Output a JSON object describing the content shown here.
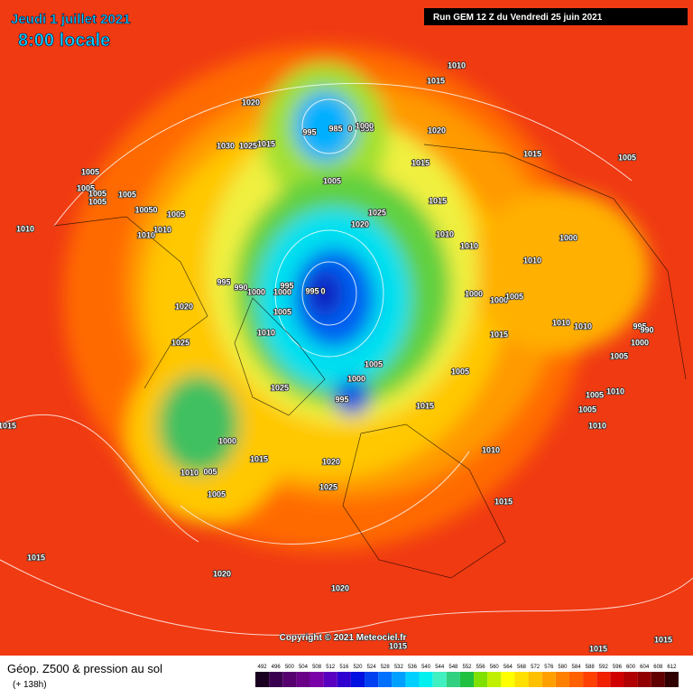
{
  "header": {
    "date": "Jeudi 1 juillet 2021",
    "time": "8:00 locale",
    "run": "Run GEM 12 Z du Vendredi 25 juin 2021"
  },
  "copyright": "Copyright © 2021 Meteociel.fr",
  "isobar_labels": [
    "1010",
    "1015",
    "1020",
    "995",
    "985",
    "0",
    "990",
    "1000",
    "1020",
    "1030",
    "1025",
    "1015",
    "1015",
    "1015",
    "1005",
    "1005",
    "1005",
    "1005",
    "1005",
    "1005",
    "10050",
    "1005",
    "1005",
    "1025",
    "1020",
    "1015",
    "1010",
    "1010",
    "1010",
    "1010",
    "1000",
    "1010",
    "1010",
    "995",
    "990",
    "995",
    "1000",
    "1000",
    "995",
    "0",
    "1000",
    "1000",
    "1005",
    "1020",
    "1005",
    "1010",
    "1010",
    "995",
    "990",
    "1000",
    "1010",
    "1015",
    "1025",
    "1005",
    "1005",
    "1005",
    "1025",
    "1000",
    "995",
    "1010",
    "1005",
    "1015",
    "1005",
    "1010",
    "1015",
    "1000",
    "1010",
    "1015",
    "1010",
    "005",
    "1020",
    "1025",
    "1005",
    "1015",
    "1015",
    "1020",
    "1020",
    "1015",
    "1015",
    "1015"
  ],
  "legend": {
    "title": "Géop. Z500 & pression au sol",
    "subtitle": "(+ 138h)",
    "scale": {
      "ticks": [
        492,
        496,
        500,
        504,
        508,
        512,
        516,
        520,
        524,
        528,
        532,
        536,
        540,
        544,
        548,
        552,
        556,
        560,
        564,
        568,
        572,
        576,
        580,
        584,
        588,
        592,
        596,
        600,
        604,
        608,
        612
      ],
      "colors": [
        "#1a0020",
        "#3a0050",
        "#55006e",
        "#6a0088",
        "#7a00a8",
        "#5a00c0",
        "#3000d0",
        "#0010e0",
        "#0040f0",
        "#0070ff",
        "#00a0ff",
        "#00d0ff",
        "#00f0f0",
        "#40f0c0",
        "#30d080",
        "#20c040",
        "#80e000",
        "#c0f000",
        "#ffff00",
        "#ffe000",
        "#ffc000",
        "#ffa000",
        "#ff8000",
        "#ff6000",
        "#ff4000",
        "#f02000",
        "#d00000",
        "#b00000",
        "#900000",
        "#600000",
        "#300000"
      ]
    }
  }
}
